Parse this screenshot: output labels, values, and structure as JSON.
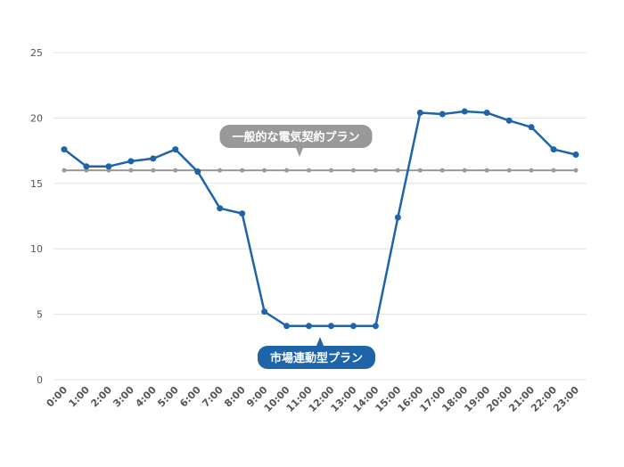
{
  "chart_data": {
    "type": "line",
    "categories": [
      "0:00",
      "1:00",
      "2:00",
      "3:00",
      "4:00",
      "5:00",
      "6:00",
      "7:00",
      "8:00",
      "9:00",
      "10:00",
      "11:00",
      "12:00",
      "13:00",
      "14:00",
      "15:00",
      "16:00",
      "17:00",
      "18:00",
      "19:00",
      "20:00",
      "21:00",
      "22:00",
      "23:00"
    ],
    "series": [
      {
        "name": "市場連動型プラン",
        "color": "#1f64a8",
        "values": [
          17.6,
          16.3,
          16.3,
          16.7,
          16.9,
          17.6,
          15.9,
          13.1,
          12.7,
          5.2,
          4.1,
          4.1,
          4.1,
          4.1,
          4.1,
          12.4,
          20.4,
          20.3,
          20.5,
          20.4,
          19.8,
          19.3,
          17.6,
          17.2
        ]
      },
      {
        "name": "一般的な電気契約プラン",
        "color": "#999999",
        "values": [
          16,
          16,
          16,
          16,
          16,
          16,
          16,
          16,
          16,
          16,
          16,
          16,
          16,
          16,
          16,
          16,
          16,
          16,
          16,
          16,
          16,
          16,
          16,
          16
        ]
      }
    ],
    "ylim": [
      0,
      25
    ],
    "yticks": [
      0,
      5,
      10,
      15,
      20,
      25
    ],
    "grid": true
  }
}
